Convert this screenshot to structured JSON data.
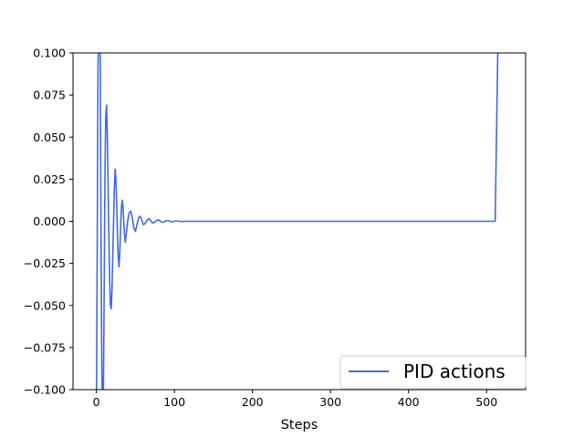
{
  "chart_data": {
    "type": "line",
    "title": "",
    "xlabel": "Steps",
    "ylabel": "",
    "xlim": [
      -30,
      550
    ],
    "ylim": [
      -0.1,
      0.1
    ],
    "x_ticks": [
      0,
      100,
      200,
      300,
      400,
      500
    ],
    "x_tick_labels": [
      "0",
      "100",
      "200",
      "300",
      "400",
      "500"
    ],
    "y_ticks": [
      0.1,
      0.075,
      0.05,
      0.025,
      0.0,
      -0.025,
      -0.05,
      -0.075,
      -0.1
    ],
    "y_tick_labels": [
      "0.100",
      "0.075",
      "0.050",
      "0.025",
      "0.000",
      "−0.025",
      "−0.050",
      "−0.075",
      "−0.100"
    ],
    "grid": false,
    "legend_position": "bottom-right",
    "series": [
      {
        "name": "PID actions",
        "color": "#4169e1",
        "points": [
          [
            0,
            -0.12
          ],
          [
            1,
            -0.02
          ],
          [
            2,
            0.09
          ],
          [
            3,
            0.12
          ],
          [
            4,
            0.14
          ],
          [
            5,
            0.09
          ],
          [
            6,
            -0.02
          ],
          [
            7,
            -0.09
          ],
          [
            8,
            -0.12
          ],
          [
            9,
            -0.1
          ],
          [
            10,
            -0.04
          ],
          [
            11,
            0.03
          ],
          [
            12,
            0.063
          ],
          [
            13,
            0.069
          ],
          [
            14,
            0.05
          ],
          [
            15,
            0.02
          ],
          [
            16,
            -0.01
          ],
          [
            17,
            -0.035
          ],
          [
            18,
            -0.05
          ],
          [
            19,
            -0.052
          ],
          [
            20,
            -0.04
          ],
          [
            21,
            -0.02
          ],
          [
            22,
            0.0
          ],
          [
            23,
            0.02
          ],
          [
            24,
            0.031
          ],
          [
            25,
            0.025
          ],
          [
            26,
            0.01
          ],
          [
            27,
            -0.008
          ],
          [
            28,
            -0.022
          ],
          [
            29,
            -0.027
          ],
          [
            30,
            -0.018
          ],
          [
            31,
            -0.004
          ],
          [
            32,
            0.008
          ],
          [
            33,
            0.0125
          ],
          [
            34,
            0.009
          ],
          [
            35,
            0.0
          ],
          [
            36,
            -0.008
          ],
          [
            37,
            -0.0125
          ],
          [
            38,
            -0.009
          ],
          [
            40,
            0.0
          ],
          [
            42,
            0.005
          ],
          [
            44,
            0.006
          ],
          [
            46,
            0.002
          ],
          [
            48,
            -0.004
          ],
          [
            50,
            -0.006
          ],
          [
            52,
            -0.002
          ],
          [
            54,
            0.002
          ],
          [
            56,
            0.003
          ],
          [
            58,
            0.001
          ],
          [
            60,
            -0.002
          ],
          [
            62,
            -0.0015
          ],
          [
            64,
            0.0
          ],
          [
            66,
            0.0012
          ],
          [
            68,
            0.0015
          ],
          [
            70,
            0.0
          ],
          [
            72,
            -0.001
          ],
          [
            74,
            -0.0008
          ],
          [
            76,
            0.0
          ],
          [
            78,
            0.0007
          ],
          [
            80,
            0.0008
          ],
          [
            82,
            0.0
          ],
          [
            84,
            -0.0005
          ],
          [
            86,
            -0.0004
          ],
          [
            88,
            0.0
          ],
          [
            90,
            0.0004
          ],
          [
            92,
            0.0004
          ],
          [
            94,
            0.0
          ],
          [
            96,
            -0.0003
          ],
          [
            98,
            -0.0002
          ],
          [
            100,
            0.0
          ],
          [
            102,
            0.0002
          ],
          [
            104,
            0.0002
          ],
          [
            106,
            0.0
          ],
          [
            108,
            -0.0001
          ],
          [
            110,
            -0.0001
          ],
          [
            114,
            0.0
          ],
          [
            120,
            0.0
          ],
          [
            200,
            0.0
          ],
          [
            300,
            0.0
          ],
          [
            400,
            0.0
          ],
          [
            500,
            0.0
          ],
          [
            511,
            0.0
          ],
          [
            513,
            0.06
          ],
          [
            515,
            0.12
          ]
        ]
      }
    ]
  }
}
